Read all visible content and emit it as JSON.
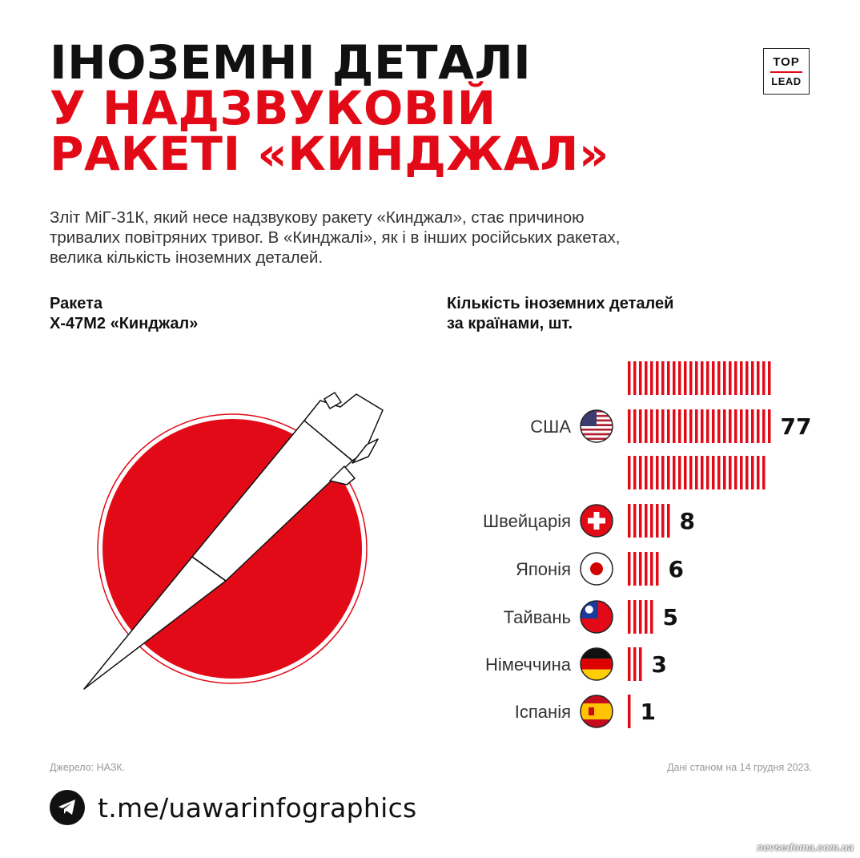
{
  "title": {
    "line1": "ІНОЗЕМНІ ДЕТАЛІ",
    "line2": "У НАДЗВУКОВІЙ",
    "line3": "РАКЕТІ «КИНДЖАЛ»"
  },
  "logo": {
    "top": "TOP",
    "bottom": "LEAD",
    "accent": "#e30a17"
  },
  "intro": {
    "line1": "Зліт МіГ-31К, який несе надзвукову ракету «Кинджал», стає причиною",
    "line2": "тривалих повітряних тривог. В «Кинджалі», як і в інших російських ракетах,",
    "line3": "велика кількість іноземних деталей."
  },
  "missile_heading": {
    "line1": "Ракета",
    "line2": "Х-47М2 «Кинджал»"
  },
  "chart_heading": {
    "line1": "Кількість іноземних деталей",
    "line2": "за країнами, шт."
  },
  "chart_data": {
    "type": "bar",
    "orientation": "horizontal",
    "categories": [
      "США",
      "Швейцарія",
      "Японія",
      "Тайвань",
      "Німеччина",
      "Іспанія"
    ],
    "values": [
      77,
      8,
      6,
      5,
      3,
      1
    ],
    "value_labels": [
      "77",
      "8",
      "6",
      "5",
      "3",
      "1"
    ],
    "flag_icons": [
      "usa-flag-icon",
      "switzerland-flag-icon",
      "japan-flag-icon",
      "taiwan-flag-icon",
      "germany-flag-icon",
      "spain-flag-icon"
    ],
    "unit": "шт.",
    "bar_style": "vertical-stripes",
    "bar_color": "#e30a17"
  },
  "colors": {
    "accent": "#e30a17",
    "text": "#111111",
    "muted": "#999999"
  },
  "footer": {
    "source": "Джерело: НАЗК.",
    "date": "Дані станом на 14 грудня 2023.",
    "telegram_link": "t.me/uawarinfographics"
  },
  "watermark": "nevsedoma.com.ua"
}
